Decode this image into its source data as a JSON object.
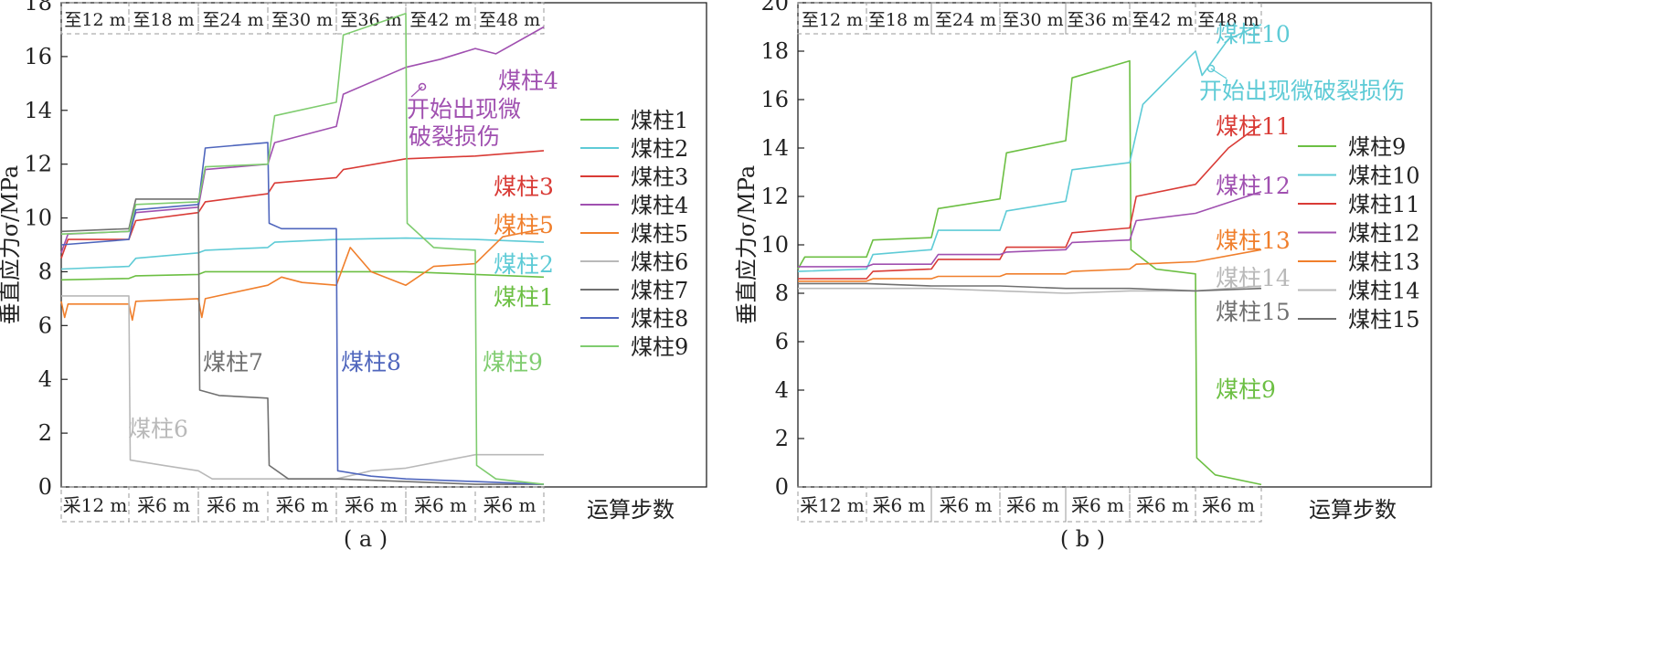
{
  "chart_data": [
    {
      "type": "line",
      "panel_label": "( a )",
      "ylabel": "垂直应力σ/MPa",
      "xlabel": "运算步数",
      "ylim": [
        0,
        18
      ],
      "yticks": [
        0,
        2,
        4,
        6,
        8,
        10,
        12,
        14,
        16,
        18
      ],
      "x_stage_labels_top": [
        "至12 m",
        "至18 m",
        "至24 m",
        "至30 m",
        "至36 m",
        "至42 m",
        "至48 m"
      ],
      "x_stage_labels_bottom": [
        "采12 m",
        "采6 m",
        "采6 m",
        "采6 m",
        "采6 m",
        "采6 m",
        "采6 m"
      ],
      "x_unit": "stage",
      "legend_position": "right",
      "annotations": [
        {
          "text": "开始出现微",
          "x": 5.2,
          "y": 15.8
        },
        {
          "text": "破裂损伤",
          "x": 5.2,
          "y": 15.8
        }
      ],
      "series": [
        {
          "name": "煤柱1",
          "color": "#6cbf43",
          "inline_label": "煤柱1",
          "points": [
            [
              0,
              7.7
            ],
            [
              1,
              7.75
            ],
            [
              1.1,
              7.85
            ],
            [
              2,
              7.9
            ],
            [
              2.1,
              8.0
            ],
            [
              3,
              8.0
            ],
            [
              4,
              8.0
            ],
            [
              5,
              8.0
            ],
            [
              6,
              7.9
            ],
            [
              7,
              7.8
            ]
          ]
        },
        {
          "name": "煤柱2",
          "color": "#5ecbd6",
          "inline_label": "煤柱2",
          "points": [
            [
              0,
              8.1
            ],
            [
              1,
              8.2
            ],
            [
              1.1,
              8.5
            ],
            [
              2,
              8.7
            ],
            [
              2.1,
              8.8
            ],
            [
              3,
              8.9
            ],
            [
              3.1,
              9.1
            ],
            [
              4,
              9.2
            ],
            [
              5,
              9.25
            ],
            [
              6,
              9.2
            ],
            [
              7,
              9.1
            ]
          ]
        },
        {
          "name": "煤柱3",
          "color": "#d93b36",
          "inline_label": "煤柱3",
          "points": [
            [
              0,
              8.5
            ],
            [
              0.1,
              9.2
            ],
            [
              1,
              9.2
            ],
            [
              1.1,
              9.9
            ],
            [
              2,
              10.2
            ],
            [
              2.1,
              10.6
            ],
            [
              3,
              10.9
            ],
            [
              3.1,
              11.3
            ],
            [
              4,
              11.5
            ],
            [
              4.1,
              11.8
            ],
            [
              5,
              12.2
            ],
            [
              6,
              12.3
            ],
            [
              7,
              12.5
            ]
          ]
        },
        {
          "name": "煤柱4",
          "color": "#a050b0",
          "inline_label": "煤柱4",
          "points": [
            [
              0,
              8.7
            ],
            [
              0.1,
              9.4
            ],
            [
              1,
              9.5
            ],
            [
              1.1,
              10.2
            ],
            [
              2,
              10.4
            ],
            [
              2.1,
              11.8
            ],
            [
              3,
              12.0
            ],
            [
              3.1,
              12.8
            ],
            [
              4,
              13.4
            ],
            [
              4.1,
              14.6
            ],
            [
              5,
              15.6
            ],
            [
              5.5,
              15.9
            ],
            [
              6,
              16.3
            ],
            [
              6.3,
              16.1
            ],
            [
              7,
              17.1
            ]
          ]
        },
        {
          "name": "煤柱5",
          "color": "#f07f2c",
          "inline_label": "煤柱5",
          "points": [
            [
              0,
              6.9
            ],
            [
              0.05,
              6.3
            ],
            [
              0.1,
              6.8
            ],
            [
              1,
              6.8
            ],
            [
              1.05,
              6.2
            ],
            [
              1.1,
              6.9
            ],
            [
              2,
              7.0
            ],
            [
              2.05,
              6.3
            ],
            [
              2.1,
              7.0
            ],
            [
              3,
              7.5
            ],
            [
              3.2,
              7.8
            ],
            [
              3.5,
              7.6
            ],
            [
              4,
              7.5
            ],
            [
              4.2,
              8.9
            ],
            [
              4.5,
              8.0
            ],
            [
              5,
              7.5
            ],
            [
              5.4,
              8.2
            ],
            [
              6,
              8.3
            ],
            [
              6.4,
              9.3
            ],
            [
              7,
              9.6
            ]
          ]
        },
        {
          "name": "煤柱6",
          "color": "#b9b9b9",
          "inline_label": "煤柱6",
          "points": [
            [
              0,
              7.1
            ],
            [
              1,
              7.1
            ],
            [
              1.02,
              1.0
            ],
            [
              1.5,
              0.8
            ],
            [
              2,
              0.6
            ],
            [
              2.2,
              0.3
            ],
            [
              3,
              0.3
            ],
            [
              4,
              0.3
            ],
            [
              4.5,
              0.6
            ],
            [
              5,
              0.7
            ],
            [
              6,
              1.2
            ],
            [
              7,
              1.2
            ]
          ]
        },
        {
          "name": "煤柱7",
          "color": "#707070",
          "inline_label": "煤柱7",
          "points": [
            [
              0,
              9.5
            ],
            [
              1,
              9.6
            ],
            [
              1.1,
              10.7
            ],
            [
              2,
              10.7
            ],
            [
              2.02,
              3.6
            ],
            [
              2.3,
              3.4
            ],
            [
              3,
              3.3
            ],
            [
              3.02,
              0.8
            ],
            [
              3.3,
              0.3
            ],
            [
              4,
              0.3
            ],
            [
              5,
              0.2
            ],
            [
              6,
              0.1
            ],
            [
              7,
              0.1
            ]
          ]
        },
        {
          "name": "煤柱8",
          "color": "#4f66bd",
          "inline_label": "煤柱8",
          "points": [
            [
              0,
              9.0
            ],
            [
              1,
              9.2
            ],
            [
              1.1,
              10.3
            ],
            [
              2,
              10.5
            ],
            [
              2.1,
              12.6
            ],
            [
              3,
              12.8
            ],
            [
              3.02,
              9.8
            ],
            [
              3.2,
              9.6
            ],
            [
              4,
              9.6
            ],
            [
              4.02,
              0.6
            ],
            [
              4.5,
              0.4
            ],
            [
              5,
              0.3
            ],
            [
              6,
              0.2
            ],
            [
              7,
              0.1
            ]
          ]
        },
        {
          "name": "煤柱9",
          "color": "#7fcc6f",
          "inline_label": "煤柱9",
          "points": [
            [
              0,
              9.4
            ],
            [
              1,
              9.5
            ],
            [
              1.1,
              10.5
            ],
            [
              2,
              10.6
            ],
            [
              2.1,
              11.9
            ],
            [
              3,
              12.0
            ],
            [
              3.1,
              13.8
            ],
            [
              4,
              14.3
            ],
            [
              4.1,
              16.8
            ],
            [
              5,
              17.6
            ],
            [
              5.02,
              9.8
            ],
            [
              5.4,
              8.9
            ],
            [
              6,
              8.8
            ],
            [
              6.02,
              0.8
            ],
            [
              6.3,
              0.3
            ],
            [
              7,
              0.1
            ]
          ]
        }
      ]
    },
    {
      "type": "line",
      "panel_label": "( b )",
      "ylabel": "垂直应力σ/MPa",
      "xlabel": "运算步数",
      "ylim": [
        0,
        20
      ],
      "yticks": [
        0,
        2,
        4,
        6,
        8,
        10,
        12,
        14,
        16,
        18,
        20
      ],
      "x_stage_labels_top": [
        "至12 m",
        "至18 m",
        "至24 m",
        "至30 m",
        "至36 m",
        "至42 m",
        "至48 m"
      ],
      "x_stage_labels_bottom": [
        "采12 m",
        "采6 m",
        "采6 m",
        "采6 m",
        "采6 m",
        "采6 m",
        "采6 m"
      ],
      "x_unit": "stage",
      "legend_position": "right",
      "annotations": [
        {
          "text": "开始出现微破裂损伤",
          "x": 5.2,
          "y": 18.3
        }
      ],
      "series": [
        {
          "name": "煤柱9",
          "color": "#6cbf43",
          "inline_label": "煤柱9",
          "points": [
            [
              0,
              9.0
            ],
            [
              0.1,
              9.5
            ],
            [
              1,
              9.5
            ],
            [
              1.1,
              10.2
            ],
            [
              2,
              10.3
            ],
            [
              2.1,
              11.5
            ],
            [
              3,
              11.9
            ],
            [
              3.1,
              13.8
            ],
            [
              4,
              14.3
            ],
            [
              4.1,
              16.9
            ],
            [
              5,
              17.6
            ],
            [
              5.02,
              9.8
            ],
            [
              5.4,
              9.0
            ],
            [
              6,
              8.8
            ],
            [
              6.02,
              1.2
            ],
            [
              6.3,
              0.5
            ],
            [
              7,
              0.1
            ]
          ]
        },
        {
          "name": "煤柱10",
          "color": "#5ecbd6",
          "inline_label": "煤柱10",
          "points": [
            [
              0,
              8.9
            ],
            [
              1,
              9.0
            ],
            [
              1.1,
              9.6
            ],
            [
              2,
              9.8
            ],
            [
              2.1,
              10.6
            ],
            [
              3,
              10.6
            ],
            [
              3.1,
              11.4
            ],
            [
              4,
              11.8
            ],
            [
              4.1,
              13.1
            ],
            [
              5,
              13.4
            ],
            [
              5.2,
              15.8
            ],
            [
              6,
              18.0
            ],
            [
              6.1,
              17.0
            ],
            [
              6.5,
              18.5
            ],
            [
              7,
              19.1
            ]
          ]
        },
        {
          "name": "煤柱11",
          "color": "#d93b36",
          "inline_label": "煤柱11",
          "points": [
            [
              0,
              8.6
            ],
            [
              1,
              8.6
            ],
            [
              1.1,
              8.9
            ],
            [
              2,
              9.0
            ],
            [
              2.1,
              9.4
            ],
            [
              3,
              9.4
            ],
            [
              3.1,
              9.9
            ],
            [
              4,
              9.9
            ],
            [
              4.1,
              10.5
            ],
            [
              5,
              10.7
            ],
            [
              5.1,
              12.0
            ],
            [
              6,
              12.5
            ],
            [
              6.5,
              14.0
            ],
            [
              7,
              15.0
            ]
          ]
        },
        {
          "name": "煤柱12",
          "color": "#a050b0",
          "inline_label": "煤柱12",
          "points": [
            [
              0,
              9.1
            ],
            [
              1,
              9.1
            ],
            [
              1.1,
              9.2
            ],
            [
              2,
              9.2
            ],
            [
              2.1,
              9.6
            ],
            [
              3,
              9.6
            ],
            [
              3.1,
              9.7
            ],
            [
              4,
              9.8
            ],
            [
              4.1,
              10.1
            ],
            [
              5,
              10.2
            ],
            [
              5.1,
              11.0
            ],
            [
              6,
              11.3
            ],
            [
              7,
              12.2
            ]
          ]
        },
        {
          "name": "煤柱13",
          "color": "#f07f2c",
          "inline_label": "煤柱13",
          "points": [
            [
              0,
              8.5
            ],
            [
              1,
              8.5
            ],
            [
              1.1,
              8.6
            ],
            [
              2,
              8.6
            ],
            [
              2.1,
              8.7
            ],
            [
              3,
              8.7
            ],
            [
              3.1,
              8.8
            ],
            [
              4,
              8.8
            ],
            [
              4.1,
              8.9
            ],
            [
              5,
              9.0
            ],
            [
              5.1,
              9.2
            ],
            [
              6,
              9.3
            ],
            [
              7,
              9.8
            ]
          ]
        },
        {
          "name": "煤柱14",
          "color": "#b9b9b9",
          "inline_label": "煤柱14",
          "points": [
            [
              0,
              8.2
            ],
            [
              1,
              8.2
            ],
            [
              2,
              8.2
            ],
            [
              3,
              8.1
            ],
            [
              4,
              8.0
            ],
            [
              5,
              8.1
            ],
            [
              6,
              8.1
            ],
            [
              7,
              8.3
            ]
          ]
        },
        {
          "name": "煤柱15",
          "color": "#707070",
          "inline_label": "煤柱15",
          "points": [
            [
              0,
              8.4
            ],
            [
              1,
              8.4
            ],
            [
              2,
              8.3
            ],
            [
              3,
              8.3
            ],
            [
              4,
              8.2
            ],
            [
              5,
              8.2
            ],
            [
              6,
              8.1
            ],
            [
              7,
              8.2
            ]
          ]
        }
      ]
    }
  ]
}
